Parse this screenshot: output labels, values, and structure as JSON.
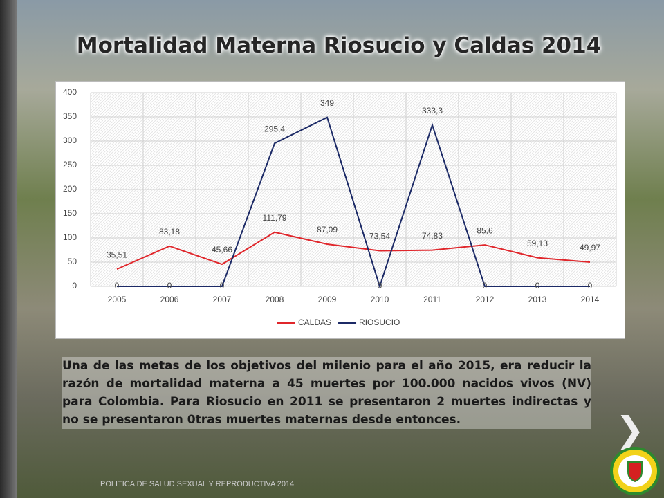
{
  "slide": {
    "title": "Mortalidad Materna Riosucio y Caldas 2014",
    "body": "Una de las  metas de los objetivos del milenio para el año 2015, era reducir la razón de mortalidad materna a 45 muertes por 100.000 nacidos vivos (NV) para Colombia. Para Riosucio en 2011 se presentaron 2 muertes indirectas y no se presentaron 0tras muertes maternas desde entonces.",
    "footer": "POLITICA DE SALUD SEXUAL Y REPRODUCTIVA 2014"
  },
  "chart_data": {
    "type": "line",
    "categories": [
      "2005",
      "2006",
      "2007",
      "2008",
      "2009",
      "2010",
      "2011",
      "2012",
      "2013",
      "2014"
    ],
    "series": [
      {
        "name": "CALDAS",
        "color": "#e0262b",
        "values": [
          35.51,
          83.18,
          45.66,
          111.79,
          87.09,
          73.54,
          74.83,
          85.6,
          59.13,
          49.97
        ],
        "value_labels": [
          "35,51",
          "83,18",
          "45,66",
          "111,79",
          "87,09",
          "73,54",
          "74,83",
          "85,6",
          "59,13",
          "49,97"
        ]
      },
      {
        "name": "RIOSUCIO",
        "color": "#1c2a66",
        "values": [
          0,
          0,
          0,
          295.4,
          349,
          0,
          333.3,
          0,
          0,
          0
        ],
        "value_labels": [
          "0",
          "0",
          "0",
          "295,4",
          "349",
          "0",
          "333,3",
          "0",
          "0",
          "0"
        ]
      }
    ],
    "ylim": [
      0,
      400
    ],
    "yticks": [
      0,
      50,
      100,
      150,
      200,
      250,
      300,
      350,
      400
    ],
    "grid": true,
    "legend": "bottom"
  }
}
